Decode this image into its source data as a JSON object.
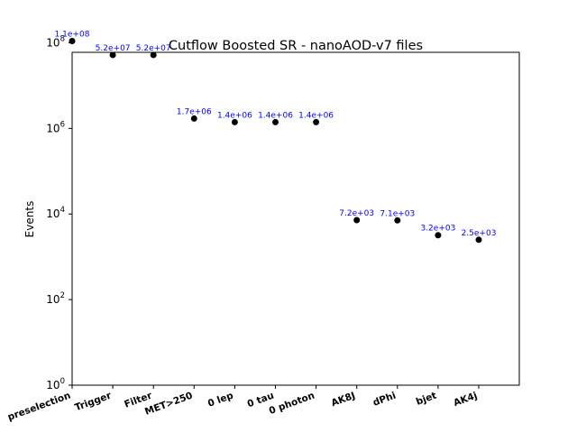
{
  "chart_data": {
    "type": "scatter",
    "title": "Cutflow Boosted SR - nanoAOD-v7 files",
    "xlabel": "",
    "ylabel": "Events",
    "yscale": "log",
    "ylim": [
      1,
      60000000
    ],
    "categories": [
      "preselection",
      "Trigger",
      "Filter",
      "MET>250",
      "0 lep",
      "0 tau",
      "0 photon",
      "AK8J",
      "dPhi",
      "bjet",
      "AK4j"
    ],
    "values": [
      110000000,
      52000000,
      52000000,
      1700000,
      1400000,
      1400000,
      1400000,
      7200,
      7100,
      3200,
      2500
    ],
    "value_labels": [
      "1.1e+08",
      "5.2e+07",
      "5.2e+07",
      "1.7e+06",
      "1.4e+06",
      "1.4e+06",
      "1.4e+06",
      "7.2e+03",
      "7.1e+03",
      "3.2e+03",
      "2.5e+03"
    ],
    "yticks": [
      {
        "value": 1,
        "base": "10",
        "exp": "0"
      },
      {
        "value": 100,
        "base": "10",
        "exp": "2"
      },
      {
        "value": 10000,
        "base": "10",
        "exp": "4"
      },
      {
        "value": 1000000,
        "base": "10",
        "exp": "6"
      },
      {
        "value": 100000000,
        "base": "10",
        "exp": "8"
      }
    ],
    "marker_color": "#000000",
    "label_color": "#0000ff",
    "grid": false,
    "legend": "none"
  }
}
